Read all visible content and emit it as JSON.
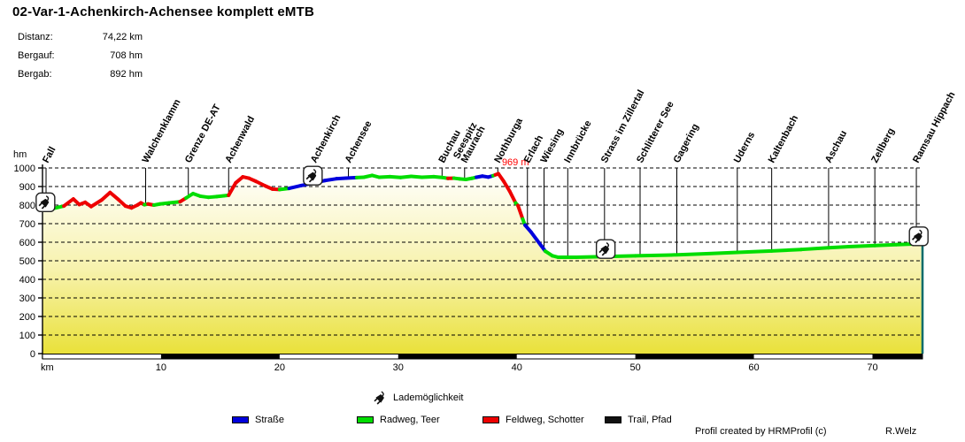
{
  "header": {
    "title": "02-Var-1-Achenkirch-Achensee komplett eMTB",
    "stats": [
      {
        "label": "Distanz:",
        "value": "74,22 km"
      },
      {
        "label": "Bergauf:",
        "value": "708 hm"
      },
      {
        "label": "Bergab:",
        "value": "892 hm"
      }
    ]
  },
  "legend": {
    "charging_label": "Lademöglichkeit",
    "items": [
      {
        "label": "Straße",
        "color": "#0000dd"
      },
      {
        "label": "Radweg, Teer",
        "color": "#00dd00"
      },
      {
        "label": "Feldweg, Schotter",
        "color": "#ee0000"
      },
      {
        "label": "Trail, Pfad",
        "color": "#111111"
      }
    ]
  },
  "footer": {
    "credit": "Profil created by HRMProfil (c)",
    "author": "R.Welz"
  },
  "chart_data": {
    "type": "area",
    "title": "02-Var-1-Achenkirch-Achensee komplett eMTB",
    "xlabel": "km",
    "ylabel": "hm",
    "xlim": [
      0,
      74.22
    ],
    "ylim": [
      0,
      1000
    ],
    "x_ticks": [
      10,
      20,
      30,
      40,
      50,
      60,
      70
    ],
    "y_tick_step": 100,
    "grid": "dashed-horizontal",
    "legend_position": "bottom",
    "area_gradient": {
      "top": "#ffffff",
      "mid": "#f7f2ac",
      "bottom": "#e9e13a"
    },
    "profile_end_line_color": "#006b6b",
    "peak_annotation": {
      "km": 38.45,
      "hm": 969,
      "label": "969 m",
      "color": "#ff0000"
    },
    "surfaces": {
      "b": {
        "name": "Straße",
        "color": "#0000dd"
      },
      "g": {
        "name": "Radweg, Teer",
        "color": "#00dd00"
      },
      "r": {
        "name": "Feldweg, Schotter",
        "color": "#ee0000"
      },
      "t": {
        "name": "Trail, Pfad",
        "color": "#111111"
      }
    },
    "profile_points": [
      [
        0,
        772,
        "g"
      ],
      [
        0.8,
        780,
        "g"
      ],
      [
        1.8,
        795,
        "r"
      ],
      [
        2.6,
        833,
        "r"
      ],
      [
        3.1,
        803,
        "r"
      ],
      [
        3.6,
        815,
        "r"
      ],
      [
        4.1,
        792,
        "r"
      ],
      [
        5,
        828,
        "r"
      ],
      [
        5.7,
        868,
        "r"
      ],
      [
        6.4,
        830,
        "r"
      ],
      [
        7,
        795,
        "r"
      ],
      [
        7.5,
        785,
        "r"
      ],
      [
        8,
        800,
        "r"
      ],
      [
        8.3,
        812,
        "r"
      ],
      [
        8.6,
        802,
        "g"
      ],
      [
        8.9,
        806,
        "r"
      ],
      [
        9.4,
        800,
        "g"
      ],
      [
        9.9,
        806,
        "g"
      ],
      [
        10.7,
        812,
        "g"
      ],
      [
        11.6,
        818,
        "r"
      ],
      [
        12.1,
        838,
        "g"
      ],
      [
        12.7,
        862,
        "g"
      ],
      [
        13.3,
        848,
        "g"
      ],
      [
        14,
        842,
        "g"
      ],
      [
        14.7,
        846,
        "g"
      ],
      [
        15.3,
        850,
        "g"
      ],
      [
        15.7,
        853,
        "r"
      ],
      [
        16.3,
        920,
        "r"
      ],
      [
        16.9,
        952,
        "r"
      ],
      [
        17.4,
        945,
        "r"
      ],
      [
        18,
        928,
        "r"
      ],
      [
        18.8,
        903,
        "r"
      ],
      [
        19.4,
        886,
        "r"
      ],
      [
        20,
        884,
        "g"
      ],
      [
        20.8,
        890,
        "b"
      ],
      [
        21.8,
        905,
        "b"
      ],
      [
        22.8,
        918,
        "b"
      ],
      [
        23.8,
        932,
        "b"
      ],
      [
        24.8,
        942,
        "b"
      ],
      [
        25.6,
        945,
        "b"
      ],
      [
        26.5,
        948,
        "g"
      ],
      [
        27.1,
        950,
        "g"
      ],
      [
        27.8,
        960,
        "g"
      ],
      [
        28.4,
        950,
        "g"
      ],
      [
        29.3,
        953,
        "g"
      ],
      [
        30.2,
        949,
        "g"
      ],
      [
        31.1,
        955,
        "g"
      ],
      [
        32,
        950,
        "g"
      ],
      [
        33,
        953,
        "g"
      ],
      [
        33.7,
        949,
        "g"
      ],
      [
        34.2,
        944,
        "r"
      ],
      [
        34.7,
        945,
        "g"
      ],
      [
        35.2,
        941,
        "g"
      ],
      [
        35.7,
        938,
        "g"
      ],
      [
        36.2,
        944,
        "g"
      ],
      [
        36.6,
        950,
        "b"
      ],
      [
        37.1,
        956,
        "b"
      ],
      [
        37.6,
        951,
        "b"
      ],
      [
        38,
        958,
        "g"
      ],
      [
        38.2,
        963,
        "r"
      ],
      [
        38.45,
        969,
        "r"
      ],
      [
        38.9,
        928,
        "r"
      ],
      [
        39.4,
        875,
        "r"
      ],
      [
        39.9,
        812,
        "g"
      ],
      [
        40.1,
        798,
        "r"
      ],
      [
        40.5,
        725,
        "g"
      ],
      [
        40.7,
        692,
        "b"
      ],
      [
        41.2,
        655,
        "b"
      ],
      [
        41.7,
        612,
        "b"
      ],
      [
        42.1,
        578,
        "b"
      ],
      [
        42.4,
        552,
        "g"
      ],
      [
        43,
        527,
        "g"
      ],
      [
        43.5,
        519,
        "g"
      ],
      [
        45,
        519,
        "g"
      ],
      [
        47,
        522,
        "g"
      ],
      [
        50,
        527,
        "g"
      ],
      [
        53,
        531,
        "g"
      ],
      [
        56,
        538,
        "g"
      ],
      [
        58.6,
        545,
        "g"
      ],
      [
        61.5,
        553,
        "g"
      ],
      [
        64,
        561,
        "g"
      ],
      [
        66.3,
        570,
        "g"
      ],
      [
        68,
        576,
        "g"
      ],
      [
        70.2,
        582,
        "g"
      ],
      [
        72,
        587,
        "g"
      ],
      [
        74.22,
        592,
        "g"
      ]
    ],
    "locations": [
      {
        "name": "Fall",
        "km": 0.3
      },
      {
        "name": "Walchenklamm",
        "km": 8.7
      },
      {
        "name": "Grenze DE-AT",
        "km": 12.3
      },
      {
        "name": "Achenwald",
        "km": 15.7
      },
      {
        "name": "Achenkirch",
        "km": 22.9
      },
      {
        "name": "Achensee",
        "km": 25.8
      },
      {
        "name": "Buchau",
        "km": 33.7
      },
      {
        "name": "Seespitz\nMaurach",
        "km": 35.6
      },
      {
        "name": "Nothburga",
        "km": 38.4
      },
      {
        "name": "Erlach",
        "km": 40.9
      },
      {
        "name": "Wiesing",
        "km": 42.3
      },
      {
        "name": "Innbrücke",
        "km": 44.3
      },
      {
        "name": "Strass im Zillertal",
        "km": 47.4
      },
      {
        "name": "Schlitterer See",
        "km": 50.4
      },
      {
        "name": "Gagering",
        "km": 53.5
      },
      {
        "name": "Uderns",
        "km": 58.6
      },
      {
        "name": "Kaltenbach",
        "km": 61.5
      },
      {
        "name": "Aschau",
        "km": 66.3
      },
      {
        "name": "Zellberg",
        "km": 70.2
      },
      {
        "name": "Ramsau Hippach",
        "km": 73.7
      }
    ],
    "charging_stations_km": [
      0.25,
      22.8,
      47.5,
      73.9
    ]
  }
}
